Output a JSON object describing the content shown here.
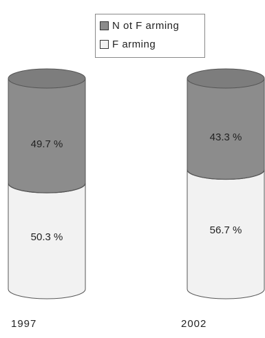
{
  "chart_data": {
    "type": "bar",
    "stacked": true,
    "percent": true,
    "shape": "cylinder",
    "categories": [
      "1997",
      "2002"
    ],
    "series": [
      {
        "name": "Farming",
        "values": [
          50.3,
          56.7
        ],
        "labels": [
          "50.3 %",
          "56.7 %"
        ],
        "color": "#f2f2f2"
      },
      {
        "name": "Not Farming",
        "values": [
          49.7,
          43.3
        ],
        "labels": [
          "49.7 %",
          "43.3 %"
        ],
        "color": "#8c8c8c"
      }
    ],
    "ylim": [
      0,
      100
    ],
    "legend": {
      "position": "top-center",
      "entries": [
        {
          "label": "N ot F arming",
          "color": "#8c8c8c"
        },
        {
          "label": "F arming",
          "color": "#f2f2f2"
        }
      ]
    },
    "grid": false
  }
}
